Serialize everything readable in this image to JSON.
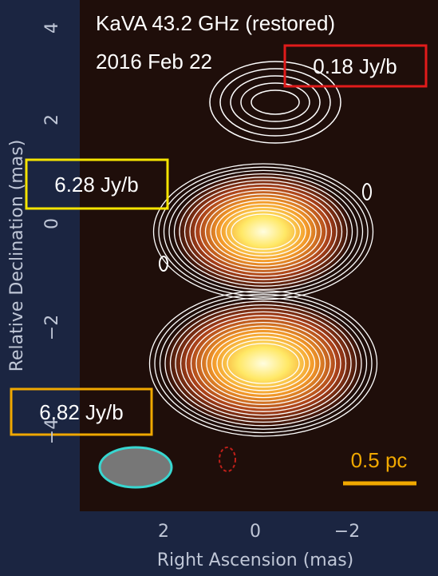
{
  "title_lines": [
    "KaVA 43.2 GHz (restored)",
    "2016 Feb 22"
  ],
  "annotations": {
    "top_peak": "0.18 Jy/b",
    "core_peak": "6.28 Jy/b",
    "lower_peak": "6.82 Jy/b",
    "scale_bar": "0.5 pc"
  },
  "y_axis": {
    "label": "Relative Declination  (mas)",
    "ticks": [
      "4",
      "2",
      "0",
      "−2",
      "−4"
    ]
  },
  "x_axis": {
    "label": "Right Ascension  (mas)",
    "ticks": [
      "2",
      "0",
      "−2"
    ]
  }
}
